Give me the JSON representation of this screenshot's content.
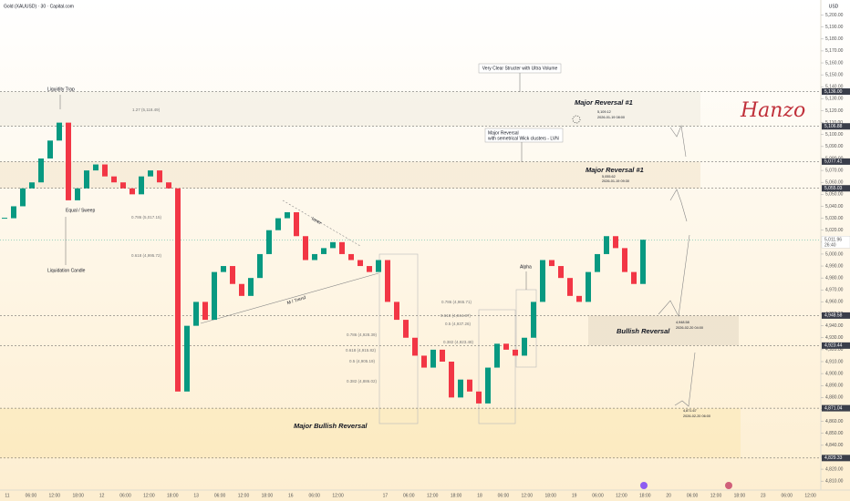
{
  "chart_data": {
    "type": "candlestick",
    "title": "Gold (XAUUSD) · 30 · Capital.com",
    "currency": "USD",
    "up_color": "#089981",
    "down_color": "#f23645",
    "ylim": [
      4801,
      5205
    ],
    "yticks": [
      {
        "value": 4810,
        "label": "4,810.00"
      },
      {
        "value": 4820,
        "label": "4,820.00"
      },
      {
        "value": 4830,
        "label": "4,830.00"
      },
      {
        "value": 4840,
        "label": "4,840.00"
      },
      {
        "value": 4850,
        "label": "4,850.00"
      },
      {
        "value": 4860,
        "label": "4,860.00"
      },
      {
        "value": 4870,
        "label": "4,870.00"
      },
      {
        "value": 4880,
        "label": "4,880.00"
      },
      {
        "value": 4890,
        "label": "4,890.00"
      },
      {
        "value": 4900,
        "label": "4,900.00"
      },
      {
        "value": 4910,
        "label": "4,910.00"
      },
      {
        "value": 4920,
        "label": "4,920.00"
      },
      {
        "value": 4930,
        "label": "4,930.00"
      },
      {
        "value": 4940,
        "label": "4,940.00"
      },
      {
        "value": 4950,
        "label": "4,950.00"
      },
      {
        "value": 4960,
        "label": "4,960.00"
      },
      {
        "value": 4970,
        "label": "4,970.00"
      },
      {
        "value": 4980,
        "label": "4,980.00"
      },
      {
        "value": 4990,
        "label": "4,990.00"
      },
      {
        "value": 5000,
        "label": "5,000.00"
      },
      {
        "value": 5010,
        "label": "5,010.00"
      },
      {
        "value": 5020,
        "label": "5,020.00"
      },
      {
        "value": 5030,
        "label": "5,030.00"
      },
      {
        "value": 5040,
        "label": "5,040.00"
      },
      {
        "value": 5050,
        "label": "5,050.00"
      },
      {
        "value": 5060,
        "label": "5,060.00"
      },
      {
        "value": 5070,
        "label": "5,070.00"
      },
      {
        "value": 5080,
        "label": "5,080.00"
      },
      {
        "value": 5090,
        "label": "5,090.00"
      },
      {
        "value": 5100,
        "label": "5,100.00"
      },
      {
        "value": 5110,
        "label": "5,110.00"
      },
      {
        "value": 5120,
        "label": "5,120.00"
      },
      {
        "value": 5130,
        "label": "5,130.00"
      },
      {
        "value": 5140,
        "label": "5,140.00"
      },
      {
        "value": 5150,
        "label": "5,150.00"
      },
      {
        "value": 5160,
        "label": "5,160.00"
      },
      {
        "value": 5170,
        "label": "5,170.00"
      },
      {
        "value": 5180,
        "label": "5,180.00"
      },
      {
        "value": 5190,
        "label": "5,190.00"
      },
      {
        "value": 5200,
        "label": "5,200.00"
      }
    ],
    "x_labels": [
      "11",
      "06:00",
      "12:00",
      "18:00",
      "12",
      "06:00",
      "12:00",
      "18:00",
      "13",
      "06:00",
      "12:00",
      "18:00",
      "16",
      "06:00",
      "12:00",
      null,
      "17",
      "06:00",
      "12:00",
      "18:00",
      "18",
      "06:00",
      "12:00",
      "18:00",
      "19",
      "06:00",
      "12:00",
      "18:00",
      "20",
      "06:00",
      "12:00",
      "18:00",
      "23",
      "06:00",
      "12:00"
    ],
    "closes": [
      5030,
      5040,
      5055,
      5060,
      5080,
      5095,
      5110,
      5045,
      5055,
      5070,
      5075,
      5065,
      5060,
      5055,
      5050,
      5065,
      5070,
      5060,
      5055,
      4885,
      4940,
      4960,
      4945,
      4985,
      4990,
      4975,
      4965,
      4980,
      5000,
      5020,
      5030,
      5035,
      5015,
      4995,
      5000,
      5005,
      5010,
      5000,
      4995,
      4990,
      4985,
      4995,
      4960,
      4945,
      4930,
      4915,
      4905,
      4920,
      4910,
      4880,
      4895,
      4885,
      4875,
      4905,
      4925,
      4920,
      4915,
      4930,
      4960,
      4995,
      4990,
      4980,
      4965,
      4960,
      4985,
      5000,
      5015,
      5005,
      4985,
      4975,
      5012
    ],
    "levels": [
      {
        "value": 5136,
        "label": "5,136.00"
      },
      {
        "value": 5106.88,
        "label": "5,106.88"
      },
      {
        "value": 5077.41,
        "label": "5,077.41"
      },
      {
        "value": 5055.03,
        "label": "5,055.03"
      },
      {
        "value": 4948.58,
        "label": "4,948.58"
      },
      {
        "value": 4923.44,
        "label": "4,923.44"
      },
      {
        "value": 4871.04,
        "label": "4,871.04"
      },
      {
        "value": 4829.33,
        "label": "4,829.33"
      }
    ],
    "current_price": {
      "value": 5011.96,
      "label": "5,011.96",
      "countdown": "26:40"
    },
    "annotations": [
      "Liquidity Trap",
      "Equal / Sweep",
      "Liquidation Candle",
      "Very  Clear Structer with Ultra Volume",
      "Major Reversal #1",
      "5,109.12",
      "2026-01-19 08:00",
      "Major Reversal",
      "with semetrical Wick clusters - LVN",
      "Major Reversal #1",
      "5,055.62",
      "2026-01-19 09:30",
      "Alpha",
      "M / Trend",
      "Inner",
      "Bullish Reversal",
      "4,948.58",
      "2026-02-20 04:00",
      "4,871.67",
      "2026-02-20 06:00",
      "Major Bullish Reversal",
      "Hanzo"
    ],
    "fib_labels": [
      "1.27 (5,118.49)",
      "0.786 (5,017.15)",
      "0.618 (4,995.72)",
      "0.786 (4,965.71)",
      "0.618 (4,944.87)",
      "0.5 (4,937.26)",
      "0.382 (4,923.48)",
      "0.786 (4,928.39)",
      "0.618 (4,915.82)",
      "0.5 (4,905.19)",
      "0.382 (4,886.02)"
    ]
  }
}
